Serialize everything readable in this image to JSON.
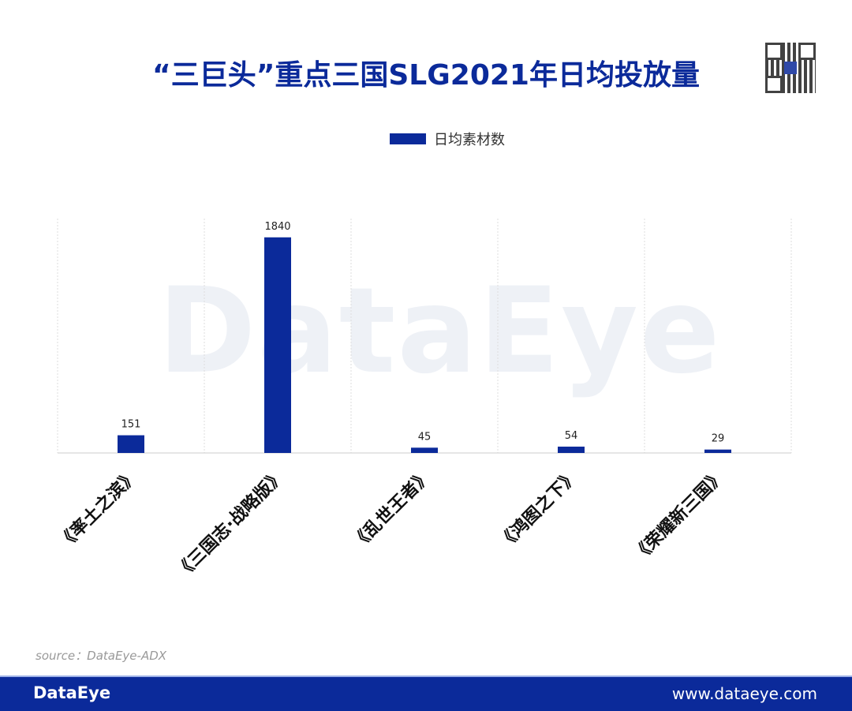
{
  "title": "“三巨头”重点三国SLG2021年日均投放量",
  "watermark": "DataEye",
  "source": "source：DataEye-ADX",
  "footer": {
    "logo": "DataEye",
    "url": "www.dataeye.com"
  },
  "colors": {
    "bar": "#0b2a9a",
    "footer": "#0b2a9a"
  },
  "chart_data": {
    "type": "bar",
    "title": "“三巨头”重点三国SLG2021年日均投放量",
    "categories": [
      "《率土之滨》",
      "《三国志·战略版》",
      "《乱世王者》",
      "《鸿图之下》",
      "《荣耀新三国》"
    ],
    "series": [
      {
        "name": "日均素材数",
        "values": [
          151,
          1840,
          45,
          54,
          29
        ]
      }
    ],
    "xlabel": "",
    "ylabel": "",
    "ylim": [
      0,
      2000
    ],
    "grid": "vertical dashed",
    "legend": "top-center",
    "data_labels": true,
    "x_tick_rotation": -45
  }
}
